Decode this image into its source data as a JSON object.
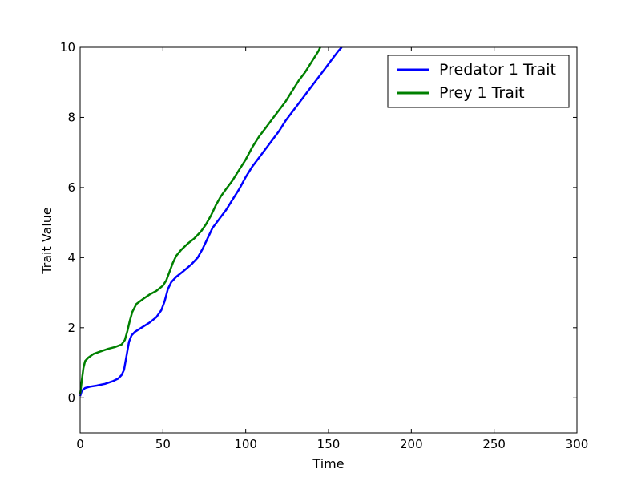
{
  "chart_data": {
    "type": "line",
    "title": "",
    "xlabel": "Time",
    "ylabel": "Trait Value",
    "xlim": [
      0,
      300
    ],
    "ylim": [
      -1,
      10
    ],
    "xticks": [
      0,
      50,
      100,
      150,
      200,
      250,
      300
    ],
    "yticks": [
      0,
      2,
      4,
      6,
      8,
      10
    ],
    "grid": false,
    "legend": "top-right",
    "series": [
      {
        "name": "Predator 1 Trait",
        "color": "#0000ff",
        "points": [
          [
            0,
            0.05
          ],
          [
            1,
            0.2
          ],
          [
            3,
            0.28
          ],
          [
            6,
            0.32
          ],
          [
            10,
            0.35
          ],
          [
            15,
            0.4
          ],
          [
            20,
            0.48
          ],
          [
            23,
            0.55
          ],
          [
            25,
            0.65
          ],
          [
            26.5,
            0.8
          ],
          [
            28,
            1.2
          ],
          [
            29.5,
            1.6
          ],
          [
            31,
            1.78
          ],
          [
            33,
            1.88
          ],
          [
            37,
            2.0
          ],
          [
            42,
            2.15
          ],
          [
            46,
            2.3
          ],
          [
            49,
            2.5
          ],
          [
            51,
            2.75
          ],
          [
            53,
            3.1
          ],
          [
            55,
            3.3
          ],
          [
            58,
            3.45
          ],
          [
            62,
            3.6
          ],
          [
            67,
            3.8
          ],
          [
            71,
            4.0
          ],
          [
            74,
            4.25
          ],
          [
            77,
            4.55
          ],
          [
            80,
            4.85
          ],
          [
            84,
            5.1
          ],
          [
            88,
            5.35
          ],
          [
            92,
            5.65
          ],
          [
            96,
            5.95
          ],
          [
            100,
            6.3
          ],
          [
            104,
            6.6
          ],
          [
            108,
            6.85
          ],
          [
            112,
            7.1
          ],
          [
            116,
            7.35
          ],
          [
            120,
            7.6
          ],
          [
            124,
            7.9
          ],
          [
            128,
            8.15
          ],
          [
            132,
            8.4
          ],
          [
            136,
            8.65
          ],
          [
            140,
            8.9
          ],
          [
            144,
            9.15
          ],
          [
            148,
            9.4
          ],
          [
            152,
            9.65
          ],
          [
            156,
            9.9
          ],
          [
            158,
            10.0
          ]
        ]
      },
      {
        "name": "Prey 1 Trait",
        "color": "#008000",
        "points": [
          [
            0,
            0.1
          ],
          [
            1,
            0.5
          ],
          [
            2,
            0.85
          ],
          [
            3,
            1.05
          ],
          [
            5,
            1.15
          ],
          [
            8,
            1.25
          ],
          [
            12,
            1.32
          ],
          [
            17,
            1.4
          ],
          [
            21,
            1.45
          ],
          [
            25,
            1.52
          ],
          [
            27,
            1.65
          ],
          [
            28.5,
            1.9
          ],
          [
            30,
            2.2
          ],
          [
            31.5,
            2.45
          ],
          [
            34,
            2.68
          ],
          [
            38,
            2.82
          ],
          [
            42,
            2.95
          ],
          [
            46,
            3.05
          ],
          [
            50,
            3.2
          ],
          [
            52,
            3.35
          ],
          [
            54,
            3.6
          ],
          [
            56,
            3.85
          ],
          [
            58,
            4.05
          ],
          [
            61,
            4.22
          ],
          [
            65,
            4.4
          ],
          [
            69,
            4.55
          ],
          [
            73,
            4.75
          ],
          [
            76,
            4.95
          ],
          [
            79,
            5.2
          ],
          [
            82,
            5.5
          ],
          [
            85,
            5.75
          ],
          [
            88,
            5.95
          ],
          [
            92,
            6.2
          ],
          [
            96,
            6.5
          ],
          [
            100,
            6.8
          ],
          [
            104,
            7.15
          ],
          [
            108,
            7.45
          ],
          [
            112,
            7.7
          ],
          [
            116,
            7.95
          ],
          [
            120,
            8.2
          ],
          [
            124,
            8.45
          ],
          [
            128,
            8.75
          ],
          [
            132,
            9.05
          ],
          [
            136,
            9.3
          ],
          [
            140,
            9.6
          ],
          [
            144,
            9.9
          ],
          [
            145,
            10.0
          ]
        ]
      }
    ]
  }
}
